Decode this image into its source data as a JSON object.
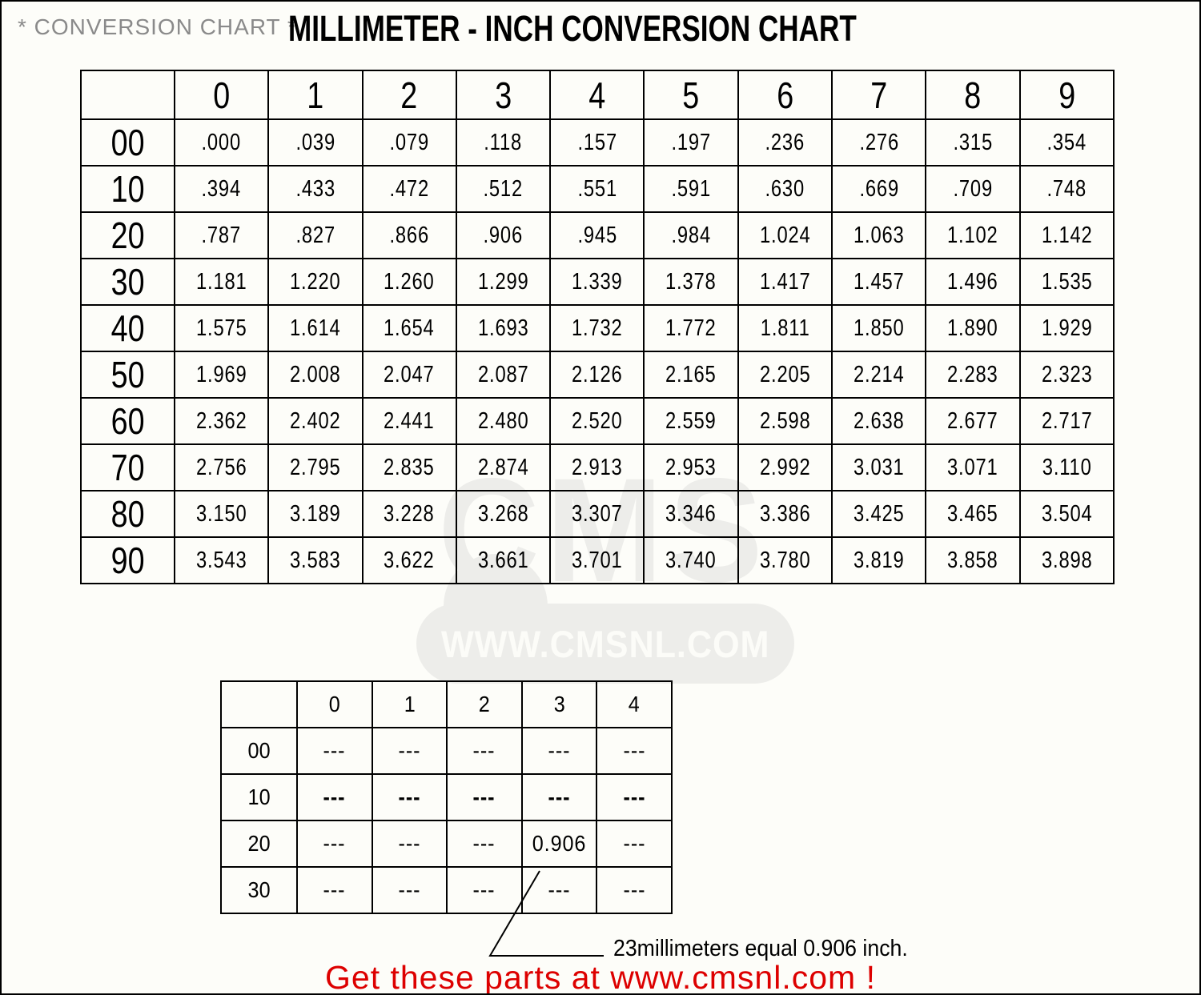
{
  "page": {
    "title_gray": "* CONVERSION CHART *",
    "title_main": "MILLIMETER - INCH CONVERSION CHART"
  },
  "chart_data": {
    "type": "table",
    "title": "MILLIMETER - INCH CONVERSION CHART",
    "main_table": {
      "description": "millimeters (row tens + column units) to inches",
      "col_headers": [
        "0",
        "1",
        "2",
        "3",
        "4",
        "5",
        "6",
        "7",
        "8",
        "9"
      ],
      "row_headers": [
        "00",
        "10",
        "20",
        "30",
        "40",
        "50",
        "60",
        "70",
        "80",
        "90"
      ],
      "rows": [
        [
          ".000",
          ".039",
          ".079",
          ".118",
          ".157",
          ".197",
          ".236",
          ".276",
          ".315",
          ".354"
        ],
        [
          ".394",
          ".433",
          ".472",
          ".512",
          ".551",
          ".591",
          ".630",
          ".669",
          ".709",
          ".748"
        ],
        [
          ".787",
          ".827",
          ".866",
          ".906",
          ".945",
          ".984",
          "1.024",
          "1.063",
          "1.102",
          "1.142"
        ],
        [
          "1.181",
          "1.220",
          "1.260",
          "1.299",
          "1.339",
          "1.378",
          "1.417",
          "1.457",
          "1.496",
          "1.535"
        ],
        [
          "1.575",
          "1.614",
          "1.654",
          "1.693",
          "1.732",
          "1.772",
          "1.811",
          "1.850",
          "1.890",
          "1.929"
        ],
        [
          "1.969",
          "2.008",
          "2.047",
          "2.087",
          "2.126",
          "2.165",
          "2.205",
          "2.214",
          "2.283",
          "2.323"
        ],
        [
          "2.362",
          "2.402",
          "2.441",
          "2.480",
          "2.520",
          "2.559",
          "2.598",
          "2.638",
          "2.677",
          "2.717"
        ],
        [
          "2.756",
          "2.795",
          "2.835",
          "2.874",
          "2.913",
          "2.953",
          "2.992",
          "3.031",
          "3.071",
          "3.110"
        ],
        [
          "3.150",
          "3.189",
          "3.228",
          "3.268",
          "3.307",
          "3.346",
          "3.386",
          "3.425",
          "3.465",
          "3.504"
        ],
        [
          "3.543",
          "3.583",
          "3.622",
          "3.661",
          "3.701",
          "3.740",
          "3.780",
          "3.819",
          "3.858",
          "3.898"
        ]
      ]
    },
    "example_table": {
      "col_headers": [
        "0",
        "1",
        "2",
        "3",
        "4"
      ],
      "row_headers": [
        "00",
        "10",
        "20",
        "30"
      ],
      "bold_row_header": "10",
      "rows": [
        [
          "---",
          "---",
          "---",
          "---",
          "---"
        ],
        [
          "---",
          "---",
          "---",
          "---",
          "---"
        ],
        [
          "---",
          "---",
          "---",
          "0.906",
          "---"
        ],
        [
          "---",
          "---",
          "---",
          "---",
          "---"
        ]
      ]
    },
    "annotation": "23millimeters equal 0.906 inch."
  },
  "watermark": {
    "ghost_text": "CMS",
    "url_text": "WWW.CMSNL.COM",
    "color": "#ededea"
  },
  "footer": {
    "promo_text": "Get these parts at www.cmsnl.com !",
    "color": "#dd0000"
  }
}
